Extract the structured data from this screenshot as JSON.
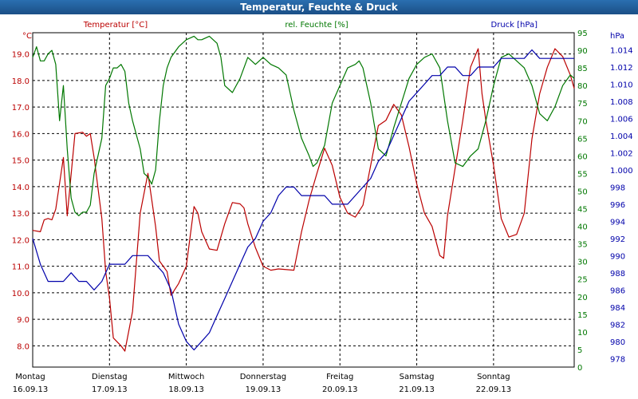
{
  "window": {
    "title": "Temperatur, Feuchte & Druck"
  },
  "colors": {
    "temperature": "#bb0000",
    "humidity": "#007700",
    "pressure": "#0000aa",
    "grid": "#000000"
  },
  "chart_data": {
    "type": "line",
    "title": "Temperatur, Feuchte & Druck",
    "grid": true,
    "axes": {
      "left": {
        "label": "Temperatur [°C]",
        "unit": "°C",
        "ylim": [
          7.2,
          19.8
        ],
        "ticks": [
          "8.0",
          "9.0",
          "10.0",
          "11.0",
          "12.0",
          "13.0",
          "14.0",
          "15.0",
          "16.0",
          "17.0",
          "18.0",
          "19.0"
        ]
      },
      "humidity": {
        "label": "rel. Feuchte [%]",
        "unit": "%",
        "ylim": [
          0,
          95
        ],
        "ticks": [
          "0",
          "5",
          "10",
          "15",
          "20",
          "25",
          "30",
          "35",
          "40",
          "45",
          "50",
          "55",
          "60",
          "65",
          "70",
          "75",
          "80",
          "85",
          "90",
          "95"
        ]
      },
      "pressure": {
        "label": "Druck [hPa]",
        "unit": "hPa",
        "ylim": [
          977,
          1016
        ],
        "ticks": [
          "978",
          "980",
          "982",
          "984",
          "986",
          "988",
          "990",
          "992",
          "994",
          "996",
          "998",
          "1.000",
          "1.002",
          "1.004",
          "1.006",
          "1.008",
          "1.010",
          "1.012",
          "1.014"
        ]
      }
    },
    "x": {
      "range": [
        0,
        7.05
      ],
      "days": [
        {
          "day": "Montag",
          "date": "16.09.13"
        },
        {
          "day": "Dienstag",
          "date": "17.09.13"
        },
        {
          "day": "Mittwoch",
          "date": "18.09.13"
        },
        {
          "day": "Donnerstag",
          "date": "19.09.13"
        },
        {
          "day": "Freitag",
          "date": "20.09.13"
        },
        {
          "day": "Samstag",
          "date": "21.09.13"
        },
        {
          "day": "Sonntag",
          "date": "22.09.13"
        }
      ]
    },
    "series": [
      {
        "name": "Temperatur [°C]",
        "axis": "left",
        "color": "#bb0000",
        "points": [
          [
            0,
            12.35
          ],
          [
            0.1,
            12.3
          ],
          [
            0.15,
            12.75
          ],
          [
            0.2,
            12.8
          ],
          [
            0.25,
            12.75
          ],
          [
            0.3,
            13.15
          ],
          [
            0.4,
            15.1
          ],
          [
            0.45,
            12.9
          ],
          [
            0.55,
            16.0
          ],
          [
            0.65,
            16.05
          ],
          [
            0.7,
            15.9
          ],
          [
            0.75,
            16.0
          ],
          [
            0.8,
            15.1
          ],
          [
            0.9,
            12.8
          ],
          [
            0.95,
            10.8
          ],
          [
            1.0,
            9.8
          ],
          [
            1.05,
            8.3
          ],
          [
            1.15,
            8.0
          ],
          [
            1.2,
            7.8
          ],
          [
            1.3,
            9.3
          ],
          [
            1.4,
            13.0
          ],
          [
            1.5,
            14.5
          ],
          [
            1.6,
            12.5
          ],
          [
            1.65,
            11.2
          ],
          [
            1.75,
            10.8
          ],
          [
            1.8,
            9.9
          ],
          [
            1.9,
            10.35
          ],
          [
            2.0,
            11.0
          ],
          [
            2.1,
            13.25
          ],
          [
            2.15,
            13.0
          ],
          [
            2.2,
            12.3
          ],
          [
            2.3,
            11.65
          ],
          [
            2.4,
            11.6
          ],
          [
            2.5,
            12.6
          ],
          [
            2.6,
            13.4
          ],
          [
            2.7,
            13.35
          ],
          [
            2.75,
            13.2
          ],
          [
            2.8,
            12.6
          ],
          [
            2.9,
            11.7
          ],
          [
            3.0,
            11.0
          ],
          [
            3.1,
            10.85
          ],
          [
            3.2,
            10.9
          ],
          [
            3.4,
            10.85
          ],
          [
            3.5,
            12.3
          ],
          [
            3.6,
            13.5
          ],
          [
            3.7,
            14.5
          ],
          [
            3.8,
            15.45
          ],
          [
            3.9,
            14.8
          ],
          [
            4.0,
            13.6
          ],
          [
            4.1,
            13.0
          ],
          [
            4.2,
            12.85
          ],
          [
            4.3,
            13.3
          ],
          [
            4.4,
            14.8
          ],
          [
            4.5,
            16.3
          ],
          [
            4.6,
            16.5
          ],
          [
            4.7,
            17.1
          ],
          [
            4.8,
            16.7
          ],
          [
            4.9,
            15.5
          ],
          [
            5.0,
            14.1
          ],
          [
            5.1,
            13.0
          ],
          [
            5.2,
            12.5
          ],
          [
            5.3,
            11.4
          ],
          [
            5.35,
            11.3
          ],
          [
            5.4,
            12.9
          ],
          [
            5.5,
            14.7
          ],
          [
            5.6,
            16.5
          ],
          [
            5.7,
            18.5
          ],
          [
            5.8,
            19.2
          ],
          [
            5.85,
            17.5
          ],
          [
            5.9,
            16.5
          ],
          [
            6.0,
            14.8
          ],
          [
            6.1,
            12.8
          ],
          [
            6.2,
            12.1
          ],
          [
            6.3,
            12.2
          ],
          [
            6.4,
            13.0
          ],
          [
            6.5,
            15.8
          ],
          [
            6.6,
            17.5
          ],
          [
            6.7,
            18.5
          ],
          [
            6.8,
            19.2
          ],
          [
            6.9,
            18.9
          ],
          [
            7.0,
            18.2
          ],
          [
            7.05,
            17.7
          ]
        ]
      },
      {
        "name": "rel. Feuchte [%]",
        "axis": "humidity",
        "color": "#007700",
        "points": [
          [
            0,
            88
          ],
          [
            0.05,
            91
          ],
          [
            0.1,
            87
          ],
          [
            0.15,
            87
          ],
          [
            0.2,
            89
          ],
          [
            0.25,
            90
          ],
          [
            0.3,
            86
          ],
          [
            0.35,
            70
          ],
          [
            0.4,
            80
          ],
          [
            0.45,
            62
          ],
          [
            0.5,
            48
          ],
          [
            0.55,
            44
          ],
          [
            0.6,
            43
          ],
          [
            0.65,
            44
          ],
          [
            0.7,
            44
          ],
          [
            0.75,
            46
          ],
          [
            0.8,
            55
          ],
          [
            0.9,
            65
          ],
          [
            0.95,
            80
          ],
          [
            1.0,
            82
          ],
          [
            1.05,
            85
          ],
          [
            1.1,
            85
          ],
          [
            1.15,
            86
          ],
          [
            1.2,
            84
          ],
          [
            1.25,
            75
          ],
          [
            1.3,
            70
          ],
          [
            1.4,
            62
          ],
          [
            1.45,
            55
          ],
          [
            1.5,
            54
          ],
          [
            1.55,
            52
          ],
          [
            1.6,
            56
          ],
          [
            1.65,
            70
          ],
          [
            1.7,
            80
          ],
          [
            1.75,
            85
          ],
          [
            1.8,
            88
          ],
          [
            1.9,
            91
          ],
          [
            2.0,
            93
          ],
          [
            2.1,
            94
          ],
          [
            2.15,
            93
          ],
          [
            2.2,
            93
          ],
          [
            2.3,
            94
          ],
          [
            2.4,
            92
          ],
          [
            2.45,
            88
          ],
          [
            2.5,
            80
          ],
          [
            2.6,
            78
          ],
          [
            2.7,
            82
          ],
          [
            2.8,
            88
          ],
          [
            2.9,
            86
          ],
          [
            3.0,
            88
          ],
          [
            3.1,
            86
          ],
          [
            3.2,
            85
          ],
          [
            3.3,
            83
          ],
          [
            3.4,
            73
          ],
          [
            3.5,
            65
          ],
          [
            3.6,
            60
          ],
          [
            3.65,
            57
          ],
          [
            3.7,
            58
          ],
          [
            3.8,
            63
          ],
          [
            3.9,
            75
          ],
          [
            4.0,
            80
          ],
          [
            4.1,
            85
          ],
          [
            4.2,
            86
          ],
          [
            4.25,
            87
          ],
          [
            4.3,
            85
          ],
          [
            4.4,
            75
          ],
          [
            4.5,
            62
          ],
          [
            4.6,
            60
          ],
          [
            4.7,
            68
          ],
          [
            4.8,
            75
          ],
          [
            4.9,
            82
          ],
          [
            5.0,
            86
          ],
          [
            5.1,
            88
          ],
          [
            5.2,
            89
          ],
          [
            5.3,
            85
          ],
          [
            5.4,
            70
          ],
          [
            5.5,
            58
          ],
          [
            5.6,
            57
          ],
          [
            5.7,
            60
          ],
          [
            5.8,
            62
          ],
          [
            5.9,
            70
          ],
          [
            6.0,
            80
          ],
          [
            6.1,
            88
          ],
          [
            6.2,
            89
          ],
          [
            6.3,
            87
          ],
          [
            6.4,
            85
          ],
          [
            6.5,
            80
          ],
          [
            6.6,
            72
          ],
          [
            6.7,
            70
          ],
          [
            6.8,
            74
          ],
          [
            6.9,
            80
          ],
          [
            7.0,
            83
          ],
          [
            7.05,
            82
          ]
        ]
      },
      {
        "name": "Druck [hPa]",
        "axis": "pressure",
        "color": "#0000aa",
        "points": [
          [
            0,
            992
          ],
          [
            0.1,
            989
          ],
          [
            0.2,
            987
          ],
          [
            0.3,
            987
          ],
          [
            0.4,
            987
          ],
          [
            0.5,
            988
          ],
          [
            0.6,
            987
          ],
          [
            0.7,
            987
          ],
          [
            0.8,
            986
          ],
          [
            0.9,
            987
          ],
          [
            1.0,
            989
          ],
          [
            1.1,
            989
          ],
          [
            1.2,
            989
          ],
          [
            1.3,
            990
          ],
          [
            1.4,
            990
          ],
          [
            1.5,
            990
          ],
          [
            1.6,
            989
          ],
          [
            1.7,
            988
          ],
          [
            1.8,
            986
          ],
          [
            1.9,
            982
          ],
          [
            2.0,
            980
          ],
          [
            2.1,
            979
          ],
          [
            2.2,
            980
          ],
          [
            2.3,
            981
          ],
          [
            2.4,
            983
          ],
          [
            2.5,
            985
          ],
          [
            2.6,
            987
          ],
          [
            2.7,
            989
          ],
          [
            2.8,
            991
          ],
          [
            2.9,
            992
          ],
          [
            3.0,
            994
          ],
          [
            3.1,
            995
          ],
          [
            3.2,
            997
          ],
          [
            3.3,
            998
          ],
          [
            3.4,
            998
          ],
          [
            3.5,
            997
          ],
          [
            3.6,
            997
          ],
          [
            3.7,
            997
          ],
          [
            3.8,
            997
          ],
          [
            3.9,
            996
          ],
          [
            4.0,
            996
          ],
          [
            4.1,
            996
          ],
          [
            4.2,
            997
          ],
          [
            4.3,
            998
          ],
          [
            4.4,
            999
          ],
          [
            4.5,
            1001
          ],
          [
            4.6,
            1002
          ],
          [
            4.7,
            1004
          ],
          [
            4.8,
            1006
          ],
          [
            4.9,
            1008
          ],
          [
            5.0,
            1009
          ],
          [
            5.1,
            1010
          ],
          [
            5.2,
            1011
          ],
          [
            5.3,
            1011
          ],
          [
            5.4,
            1012
          ],
          [
            5.5,
            1012
          ],
          [
            5.6,
            1011
          ],
          [
            5.7,
            1011
          ],
          [
            5.8,
            1012
          ],
          [
            5.9,
            1012
          ],
          [
            6.0,
            1012
          ],
          [
            6.1,
            1013
          ],
          [
            6.2,
            1013
          ],
          [
            6.3,
            1013
          ],
          [
            6.4,
            1013
          ],
          [
            6.5,
            1014
          ],
          [
            6.6,
            1013
          ],
          [
            6.7,
            1013
          ],
          [
            6.8,
            1013
          ],
          [
            6.9,
            1013
          ],
          [
            7.0,
            1013
          ],
          [
            7.05,
            1013
          ]
        ]
      }
    ]
  }
}
